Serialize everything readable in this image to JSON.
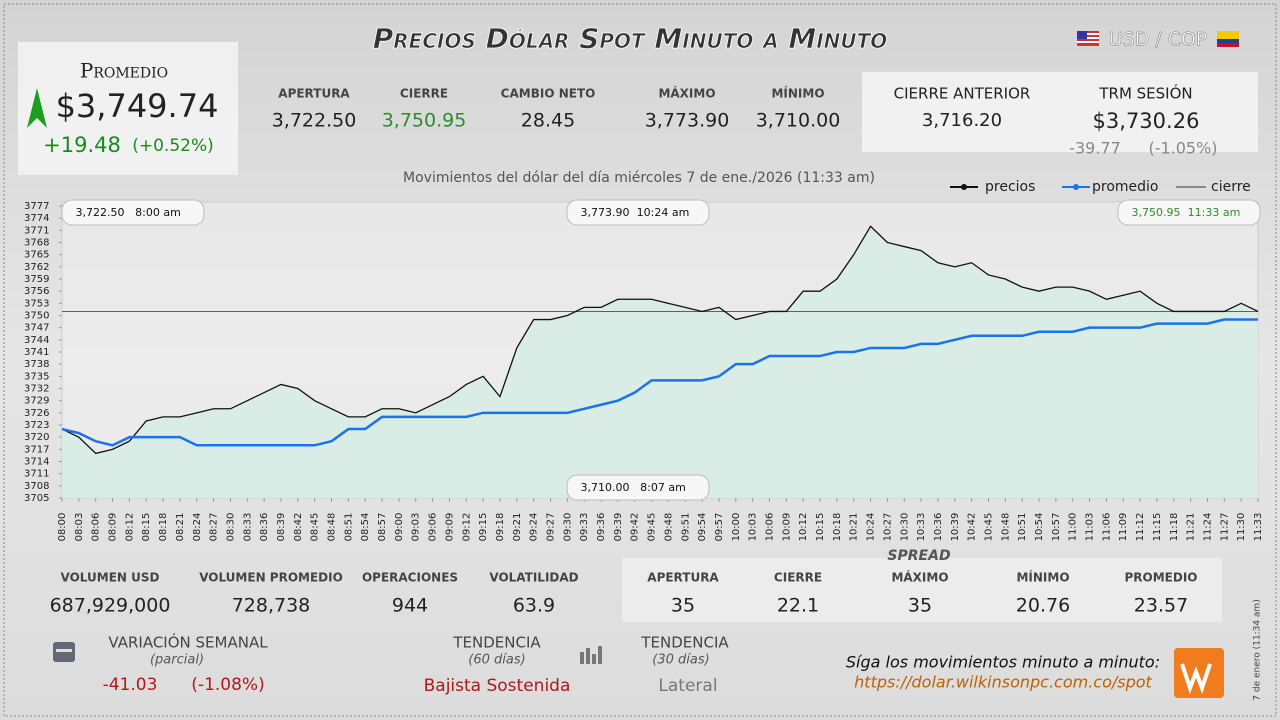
{
  "header": {
    "title": "Precios Dólar Spot Minuto a Minuto",
    "pair": "USD / COP"
  },
  "promedio": {
    "label": "Promedio",
    "value": "$3,749.74",
    "change": "+19.48",
    "change_pct": "(+0.52%)"
  },
  "stats": [
    {
      "label": "APERTURA",
      "value": "3,722.50"
    },
    {
      "label": "CIERRE",
      "value": "3,750.95"
    },
    {
      "label": "CAMBIO NETO",
      "value": "28.45"
    },
    {
      "label": "MÁXIMO",
      "value": "3,773.90"
    },
    {
      "label": "MÍNIMO",
      "value": "3,710.00"
    }
  ],
  "prev_close": {
    "label": "CIERRE ANTERIOR",
    "value": "3,716.20"
  },
  "trm": {
    "label": "TRM SESIÓN",
    "value": "$3,730.26",
    "change": "-39.77",
    "change_pct": "(-1.05%)"
  },
  "chart_data": {
    "type": "line",
    "subtitle": "Movimientos del dólar del día miércoles 7 de ene./2026 (11:33 am)",
    "categories": [
      "08:00",
      "08:03",
      "08:06",
      "08:09",
      "08:12",
      "08:15",
      "08:18",
      "08:21",
      "08:24",
      "08:27",
      "08:30",
      "08:33",
      "08:36",
      "08:39",
      "08:42",
      "08:45",
      "08:48",
      "08:51",
      "08:54",
      "08:57",
      "09:00",
      "09:03",
      "09:06",
      "09:09",
      "09:12",
      "09:15",
      "09:18",
      "09:21",
      "09:24",
      "09:27",
      "09:30",
      "09:33",
      "09:36",
      "09:39",
      "09:42",
      "09:45",
      "09:48",
      "09:51",
      "09:54",
      "09:57",
      "10:00",
      "10:03",
      "10:06",
      "10:09",
      "10:12",
      "10:15",
      "10:18",
      "10:21",
      "10:24",
      "10:27",
      "10:30",
      "10:33",
      "10:36",
      "10:39",
      "10:42",
      "10:45",
      "10:48",
      "10:51",
      "10:54",
      "10:57",
      "11:00",
      "11:03",
      "11:06",
      "11:09",
      "11:12",
      "11:15",
      "11:18",
      "11:21",
      "11:24",
      "11:27",
      "11:30",
      "11:33"
    ],
    "series": [
      {
        "name": "precios",
        "color": "#111111",
        "values": [
          3722,
          3720,
          3716,
          3717,
          3719,
          3724,
          3725,
          3725,
          3726,
          3727,
          3727,
          3729,
          3731,
          3733,
          3732,
          3729,
          3727,
          3725,
          3725,
          3727,
          3727,
          3726,
          3728,
          3730,
          3733,
          3735,
          3730,
          3742,
          3749,
          3749,
          3750,
          3752,
          3752,
          3754,
          3754,
          3754,
          3753,
          3752,
          3751,
          3752,
          3749,
          3750,
          3751,
          3751,
          3756,
          3756,
          3759,
          3765,
          3772,
          3768,
          3767,
          3766,
          3763,
          3762,
          3763,
          3760,
          3759,
          3757,
          3756,
          3757,
          3757,
          3756,
          3754,
          3755,
          3756,
          3753,
          3751,
          3751,
          3751,
          3751,
          3753,
          3751
        ]
      },
      {
        "name": "promedio",
        "color": "#1a73e8",
        "values": [
          3722,
          3721,
          3719,
          3718,
          3720,
          3720,
          3720,
          3720,
          3718,
          3718,
          3718,
          3718,
          3718,
          3718,
          3718,
          3718,
          3719,
          3722,
          3722,
          3725,
          3725,
          3725,
          3725,
          3725,
          3725,
          3726,
          3726,
          3726,
          3726,
          3726,
          3726,
          3727,
          3728,
          3729,
          3731,
          3734,
          3734,
          3734,
          3734,
          3735,
          3738,
          3738,
          3740,
          3740,
          3740,
          3740,
          3741,
          3741,
          3742,
          3742,
          3742,
          3743,
          3743,
          3744,
          3745,
          3745,
          3745,
          3745,
          3746,
          3746,
          3746,
          3747,
          3747,
          3747,
          3747,
          3748,
          3748,
          3748,
          3748,
          3749,
          3749,
          3749
        ]
      }
    ],
    "reference_line": {
      "name": "cierre",
      "value": 3750.95,
      "color": "#333333"
    },
    "area_color": "#d6ece4",
    "ylim": [
      3705,
      3777
    ],
    "yticks": [
      3705,
      3708,
      3711,
      3714,
      3717,
      3720,
      3723,
      3726,
      3729,
      3732,
      3735,
      3738,
      3741,
      3744,
      3747,
      3750,
      3753,
      3756,
      3759,
      3762,
      3765,
      3768,
      3771,
      3774,
      3777
    ],
    "annotations": [
      {
        "value": "3,722.50",
        "time": "8:00 am",
        "color": "#111111"
      },
      {
        "value": "3,773.90",
        "time": "10:24 am",
        "color": "#111111"
      },
      {
        "value": "3,750.95",
        "time": "11:33 am",
        "color": "#2e8b2e"
      },
      {
        "value": "3,710.00",
        "time": "8:07 am",
        "color": "#111111"
      }
    ]
  },
  "volume": [
    {
      "label": "VOLUMEN USD",
      "value": "687,929,000"
    },
    {
      "label": "VOLUMEN PROMEDIO",
      "value": "728,738"
    },
    {
      "label": "OPERACIONES",
      "value": "944"
    },
    {
      "label": "VOLATILIDAD",
      "value": "63.9"
    }
  ],
  "spread": {
    "title": "SPREAD",
    "items": [
      {
        "label": "APERTURA",
        "value": "35"
      },
      {
        "label": "CIERRE",
        "value": "22.1"
      },
      {
        "label": "MÁXIMO",
        "value": "35"
      },
      {
        "label": "MÍNIMO",
        "value": "20.76"
      },
      {
        "label": "PROMEDIO",
        "value": "23.57"
      }
    ]
  },
  "weekly": {
    "label": "VARIACIÓN SEMANAL",
    "note": "(parcial)",
    "change": "-41.03",
    "change_pct": "(-1.08%)"
  },
  "trend60": {
    "label": "TENDENCIA",
    "note": "(60 días)",
    "value": "Bajista Sostenida"
  },
  "trend30": {
    "label": "TENDENCIA",
    "note": "(30 días)",
    "value": "Lateral"
  },
  "footer": {
    "text": "Síga los movimientos minuto a minuto:",
    "url": "https://dolar.wilkinsonpc.com.co/spot",
    "stamp": "7 de enero (11:34 am)"
  }
}
